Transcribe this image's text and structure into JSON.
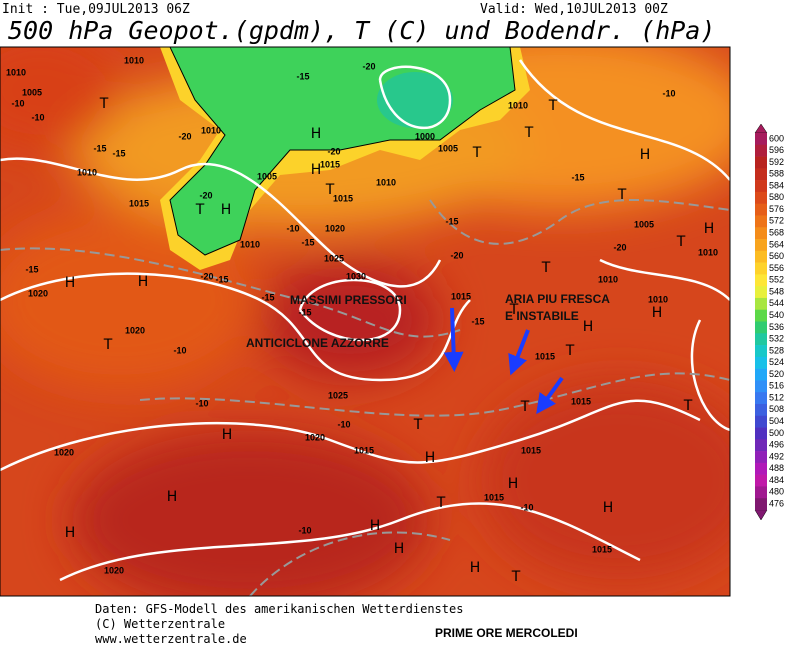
{
  "header": {
    "init": "Init : Tue,09JUL2013 06Z",
    "valid": "Valid: Wed,10JUL2013 00Z",
    "title": "500 hPa Geopot.(gpdm), T (C) und Bodendr. (hPa)"
  },
  "annotations": [
    "MASSIMI PRESSORI",
    "ANTICICLONE AZZORRE",
    "ARIA PIU FRESCA",
    "E INSTABILE"
  ],
  "pressure_centers": [
    "T",
    "H",
    "H",
    "T",
    "H",
    "T",
    "H",
    "H",
    "T",
    "H",
    "H",
    "H",
    "H",
    "T",
    "H",
    "T",
    "H",
    "T",
    "H",
    "T",
    "H",
    "T",
    "T",
    "T",
    "T",
    "T",
    "T",
    "H",
    "T",
    "H",
    "T",
    "H",
    "T",
    "H",
    "H"
  ],
  "isobar_labels": [
    1010,
    1005,
    1010,
    1010,
    1015,
    1010,
    1015,
    1010,
    1015,
    1005,
    1010,
    1020,
    1025,
    1030,
    1020,
    1020,
    1025,
    1020,
    1020,
    1015,
    1015,
    1015,
    1015,
    1015,
    1015,
    1015,
    1020,
    1000,
    1005,
    1010,
    1005,
    1010,
    1010,
    1010
  ],
  "temperature_labels": [
    -10,
    -10,
    -15,
    -15,
    -20,
    -20,
    -15,
    -20,
    -20,
    -15,
    -10,
    -20,
    -15,
    -15,
    -15,
    -10,
    -10,
    -10,
    -10,
    -10,
    -15,
    -15,
    -20,
    -20,
    -15,
    -15,
    -10
  ],
  "colorbar": {
    "levels": [
      600,
      596,
      592,
      588,
      584,
      580,
      576,
      572,
      568,
      564,
      560,
      556,
      552,
      548,
      544,
      540,
      536,
      532,
      528,
      524,
      520,
      516,
      512,
      508,
      504,
      500,
      496,
      492,
      488,
      484,
      480,
      476
    ],
    "colors": [
      "#a61b5c",
      "#b01e3c",
      "#b8231f",
      "#c42d1d",
      "#d0391b",
      "#dc4a1a",
      "#e65e18",
      "#ee7418",
      "#f48c1a",
      "#f8a41e",
      "#fcbc22",
      "#fed22a",
      "#fee636",
      "#e8f03c",
      "#a8e640",
      "#5cd848",
      "#30cc70",
      "#20c8a0",
      "#18c8c8",
      "#18c0e8",
      "#20a8f8",
      "#3090f8",
      "#3878f0",
      "#3c60e0",
      "#4048d0",
      "#5030c0",
      "#7028b8",
      "#9020b8",
      "#b018b8",
      "#c018a8",
      "#a01890",
      "#801870"
    ]
  },
  "footer": {
    "source": "Daten: GFS-Modell des amerikanischen Wetterdienstes",
    "copyright": "(C) Wetterzentrale",
    "url": "www.wetterzentrale.de",
    "note": "PRIME ORE MERCOLEDI"
  }
}
